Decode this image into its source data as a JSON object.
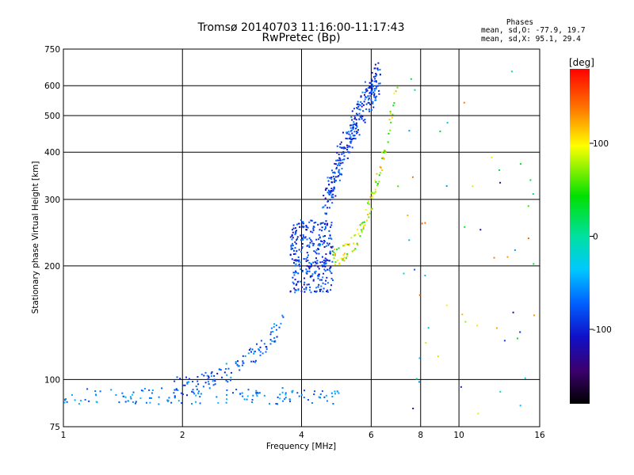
{
  "title_line1": "Tromsø 20140703 11:16:00-11:17:43",
  "title_line2": "RwPretec (Bp)",
  "phases": {
    "heading": "Phases",
    "line_o": "mean, sd,O: -77.9, 19.7",
    "line_x": "mean, sd,X:  95.1, 29.4"
  },
  "colorbar": {
    "label": "[deg]",
    "ticks": [
      "100",
      "0",
      "-100"
    ],
    "tick_values": [
      100,
      0,
      -100
    ],
    "range": [
      -180,
      180
    ]
  },
  "chart_data": {
    "type": "scatter",
    "title": "Tromsø 20140703 11:16:00-11:17:43",
    "subtitle": "RwPretec (Bp)",
    "xlabel": "Frequency [MHz]",
    "ylabel": "Stationary phase Virtual Height [km]",
    "xscale": "log",
    "yscale": "log",
    "xlim": [
      1,
      16
    ],
    "ylim": [
      75,
      750
    ],
    "x_ticks": [
      1,
      2,
      4,
      6,
      8,
      10,
      16
    ],
    "y_ticks": [
      75,
      100,
      200,
      300,
      400,
      500,
      600,
      750
    ],
    "x_tick_labels": [
      "1",
      "2",
      "4",
      "6",
      "8",
      "10",
      "16"
    ],
    "y_tick_labels": [
      "75",
      "100",
      "200",
      "300",
      "400",
      "500",
      "600",
      "750"
    ],
    "grid": true,
    "color_scale": "phase in degrees",
    "series": [
      {
        "trace": "low_echo_band",
        "x_range": [
          1.0,
          5.0
        ],
        "y_range": [
          86,
          95
        ],
        "phase_deg": [
          -90,
          -40
        ],
        "count": 140
      },
      {
        "trace": "e_layer_rise",
        "x_range": [
          1.9,
          3.6
        ],
        "y_range": [
          96,
          142
        ],
        "phase_deg": [
          -110,
          -50
        ],
        "count": 120
      },
      {
        "trace": "f_region_o_trace_cluster",
        "x_range": [
          3.75,
          4.8
        ],
        "y_range": [
          170,
          265
        ],
        "phase_deg": [
          -120,
          -60
        ],
        "count": 320
      },
      {
        "trace": "f_region_o_trace_upper",
        "x_range": [
          4.6,
          6.3
        ],
        "y_range": [
          270,
          640
        ],
        "phase_deg": [
          -120,
          -60
        ],
        "count": 300
      },
      {
        "trace": "f_region_x_trace",
        "x_range": [
          4.8,
          7.0
        ],
        "y_range": [
          210,
          620
        ],
        "phase_deg": [
          40,
          130
        ],
        "count": 110
      },
      {
        "trace": "scattered_high_freq",
        "x_range": [
          7.0,
          16.0
        ],
        "y_range": [
          76,
          660
        ],
        "phase_deg": [
          -140,
          150
        ],
        "count": 55
      }
    ]
  }
}
